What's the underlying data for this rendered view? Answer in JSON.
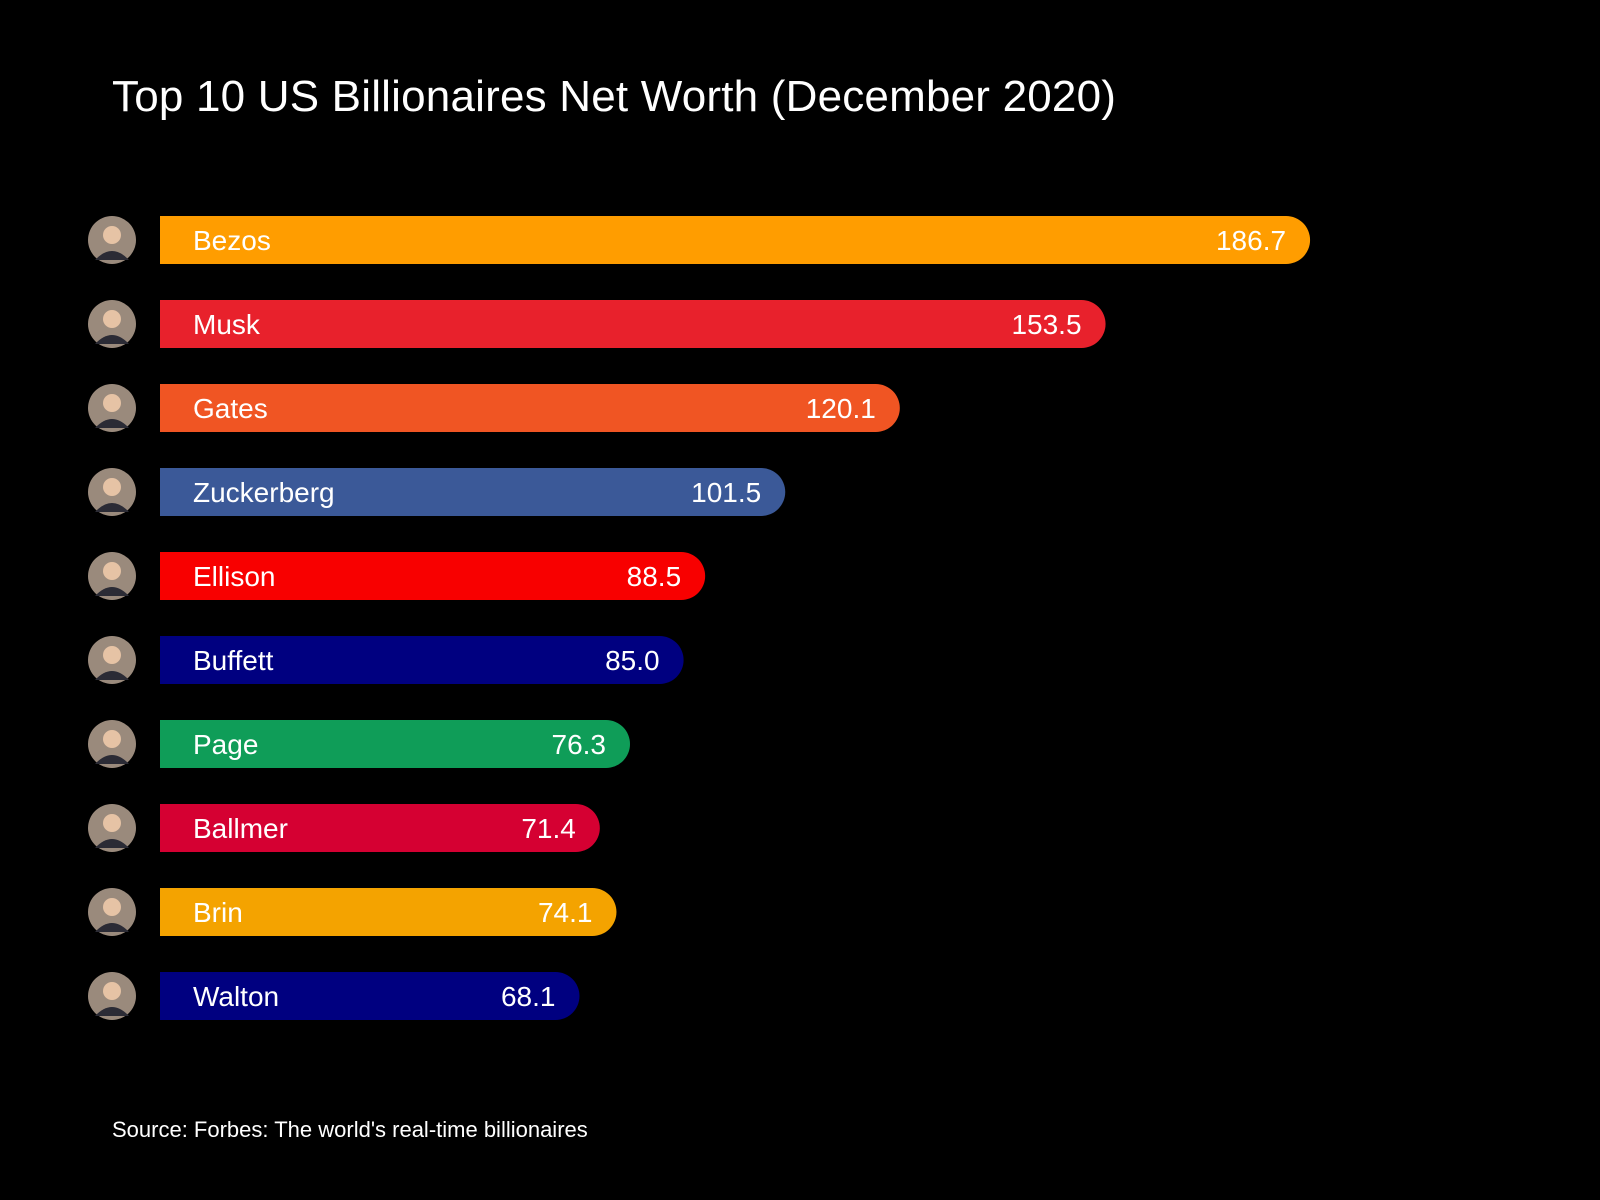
{
  "chart_data": {
    "type": "bar",
    "orientation": "horizontal",
    "title": "Top 10 US Billionaires Net Worth (December 2020)",
    "source": "Source: Forbes: The world's real-time billionaires",
    "xlabel": "",
    "ylabel": "",
    "grid": false,
    "value_labels": [
      "186.7",
      "153.5",
      "120.1",
      "101.5",
      "88.5",
      "85.0",
      "76.3",
      "71.4",
      "74.1",
      "68.1"
    ],
    "bars": [
      {
        "name": "Bezos",
        "value": 186.7,
        "color": "#FF9D00",
        "avatar": "bezos-avatar-icon"
      },
      {
        "name": "Musk",
        "value": 153.5,
        "color": "#E8212C",
        "avatar": "musk-avatar-icon"
      },
      {
        "name": "Gates",
        "value": 120.1,
        "color": "#F05523",
        "avatar": "gates-avatar-icon"
      },
      {
        "name": "Zuckerberg",
        "value": 101.5,
        "color": "#3B5998",
        "avatar": "zuckerberg-avatar-icon"
      },
      {
        "name": "Ellison",
        "value": 88.5,
        "color": "#F80000",
        "avatar": "ellison-avatar-icon"
      },
      {
        "name": "Buffett",
        "value": 85.0,
        "color": "#000080",
        "avatar": "buffett-avatar-icon"
      },
      {
        "name": "Page",
        "value": 76.3,
        "color": "#0F9D58",
        "avatar": "page-avatar-icon"
      },
      {
        "name": "Ballmer",
        "value": 71.4,
        "color": "#D50032",
        "avatar": "ballmer-avatar-icon"
      },
      {
        "name": "Brin",
        "value": 74.1,
        "color": "#F4A300",
        "avatar": "brin-avatar-icon"
      },
      {
        "name": "Walton",
        "value": 68.1,
        "color": "#000080",
        "avatar": "walton-avatar-icon"
      }
    ]
  }
}
